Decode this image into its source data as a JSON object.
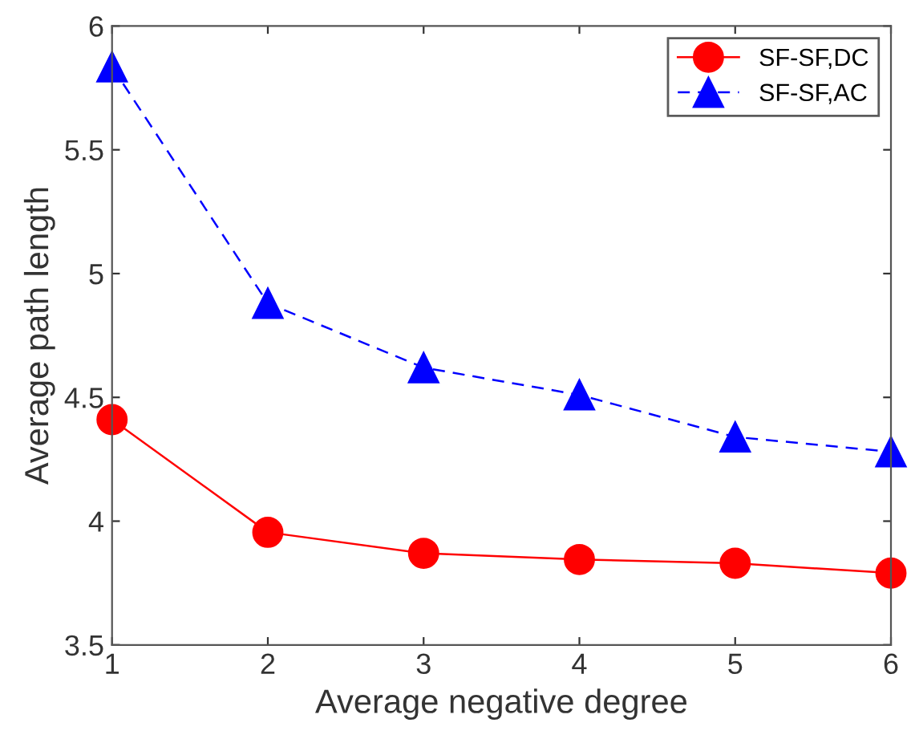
{
  "chart_data": {
    "type": "line",
    "xlabel": "Average negative degree",
    "ylabel": "Average path length",
    "x": [
      1,
      2,
      3,
      4,
      5,
      6
    ],
    "series": [
      {
        "name": "SF-SF,DC",
        "color": "#ff0000",
        "values": [
          4.41,
          3.955,
          3.87,
          3.845,
          3.83,
          3.79
        ],
        "marker": "circle",
        "line_style": "solid"
      },
      {
        "name": "SF-SF,AC",
        "color": "#0000ff",
        "values": [
          5.835,
          4.88,
          4.62,
          4.51,
          4.34,
          4.28
        ],
        "marker": "triangle",
        "line_style": "dashed"
      }
    ],
    "xlim": [
      1,
      6
    ],
    "xticks": [
      1,
      2,
      3,
      4,
      5,
      6
    ],
    "ylim": [
      3.5,
      6
    ],
    "yticks": [
      3.5,
      4,
      4.5,
      5,
      5.5,
      6
    ],
    "grid": false,
    "legend": "top right"
  }
}
